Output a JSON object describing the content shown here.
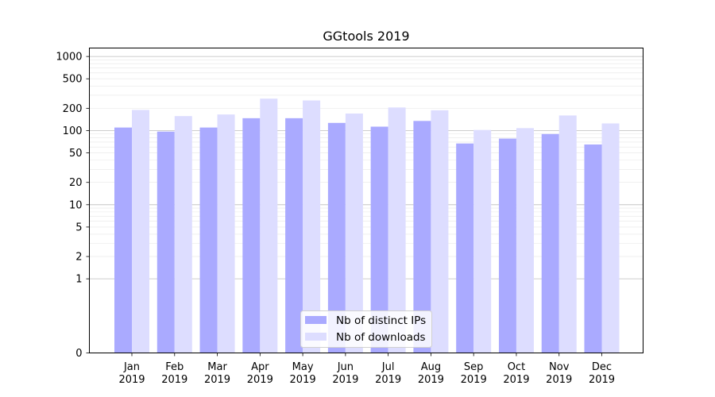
{
  "chart_data": {
    "type": "bar",
    "title": "GGtools 2019",
    "xlabel": "",
    "ylabel": "",
    "categories": [
      {
        "month": "Jan",
        "year": "2019"
      },
      {
        "month": "Feb",
        "year": "2019"
      },
      {
        "month": "Mar",
        "year": "2019"
      },
      {
        "month": "Apr",
        "year": "2019"
      },
      {
        "month": "May",
        "year": "2019"
      },
      {
        "month": "Jun",
        "year": "2019"
      },
      {
        "month": "Jul",
        "year": "2019"
      },
      {
        "month": "Aug",
        "year": "2019"
      },
      {
        "month": "Sep",
        "year": "2019"
      },
      {
        "month": "Oct",
        "year": "2019"
      },
      {
        "month": "Nov",
        "year": "2019"
      },
      {
        "month": "Dec",
        "year": "2019"
      }
    ],
    "series": [
      {
        "name": "Nb of distinct IPs",
        "color": "#aaaaff",
        "values": [
          110,
          97,
          110,
          147,
          147,
          127,
          113,
          135,
          67,
          78,
          90,
          65
        ]
      },
      {
        "name": "Nb of downloads",
        "color": "#ddddff",
        "values": [
          190,
          157,
          165,
          270,
          255,
          170,
          205,
          188,
          102,
          108,
          160,
          125
        ]
      }
    ],
    "yscale": "symlog",
    "ylim": [
      0,
      1300
    ],
    "yticks": [
      {
        "value": 0,
        "label": "0"
      },
      {
        "value": 1,
        "label": "1"
      },
      {
        "value": 2,
        "label": "2"
      },
      {
        "value": 5,
        "label": "5"
      },
      {
        "value": 10,
        "label": "10"
      },
      {
        "value": 20,
        "label": "20"
      },
      {
        "value": 50,
        "label": "50"
      },
      {
        "value": 100,
        "label": "100"
      },
      {
        "value": 200,
        "label": "200"
      },
      {
        "value": 500,
        "label": "500"
      },
      {
        "value": 1000,
        "label": "1000"
      }
    ],
    "major_gridlines": [
      1,
      10,
      100,
      1000
    ],
    "minor_gridlines": [
      2,
      3,
      4,
      5,
      6,
      7,
      8,
      9,
      20,
      30,
      40,
      50,
      60,
      70,
      80,
      90,
      200,
      300,
      400,
      500,
      600,
      700,
      800,
      900
    ],
    "grid": true,
    "legend_position": "bottom-center"
  }
}
